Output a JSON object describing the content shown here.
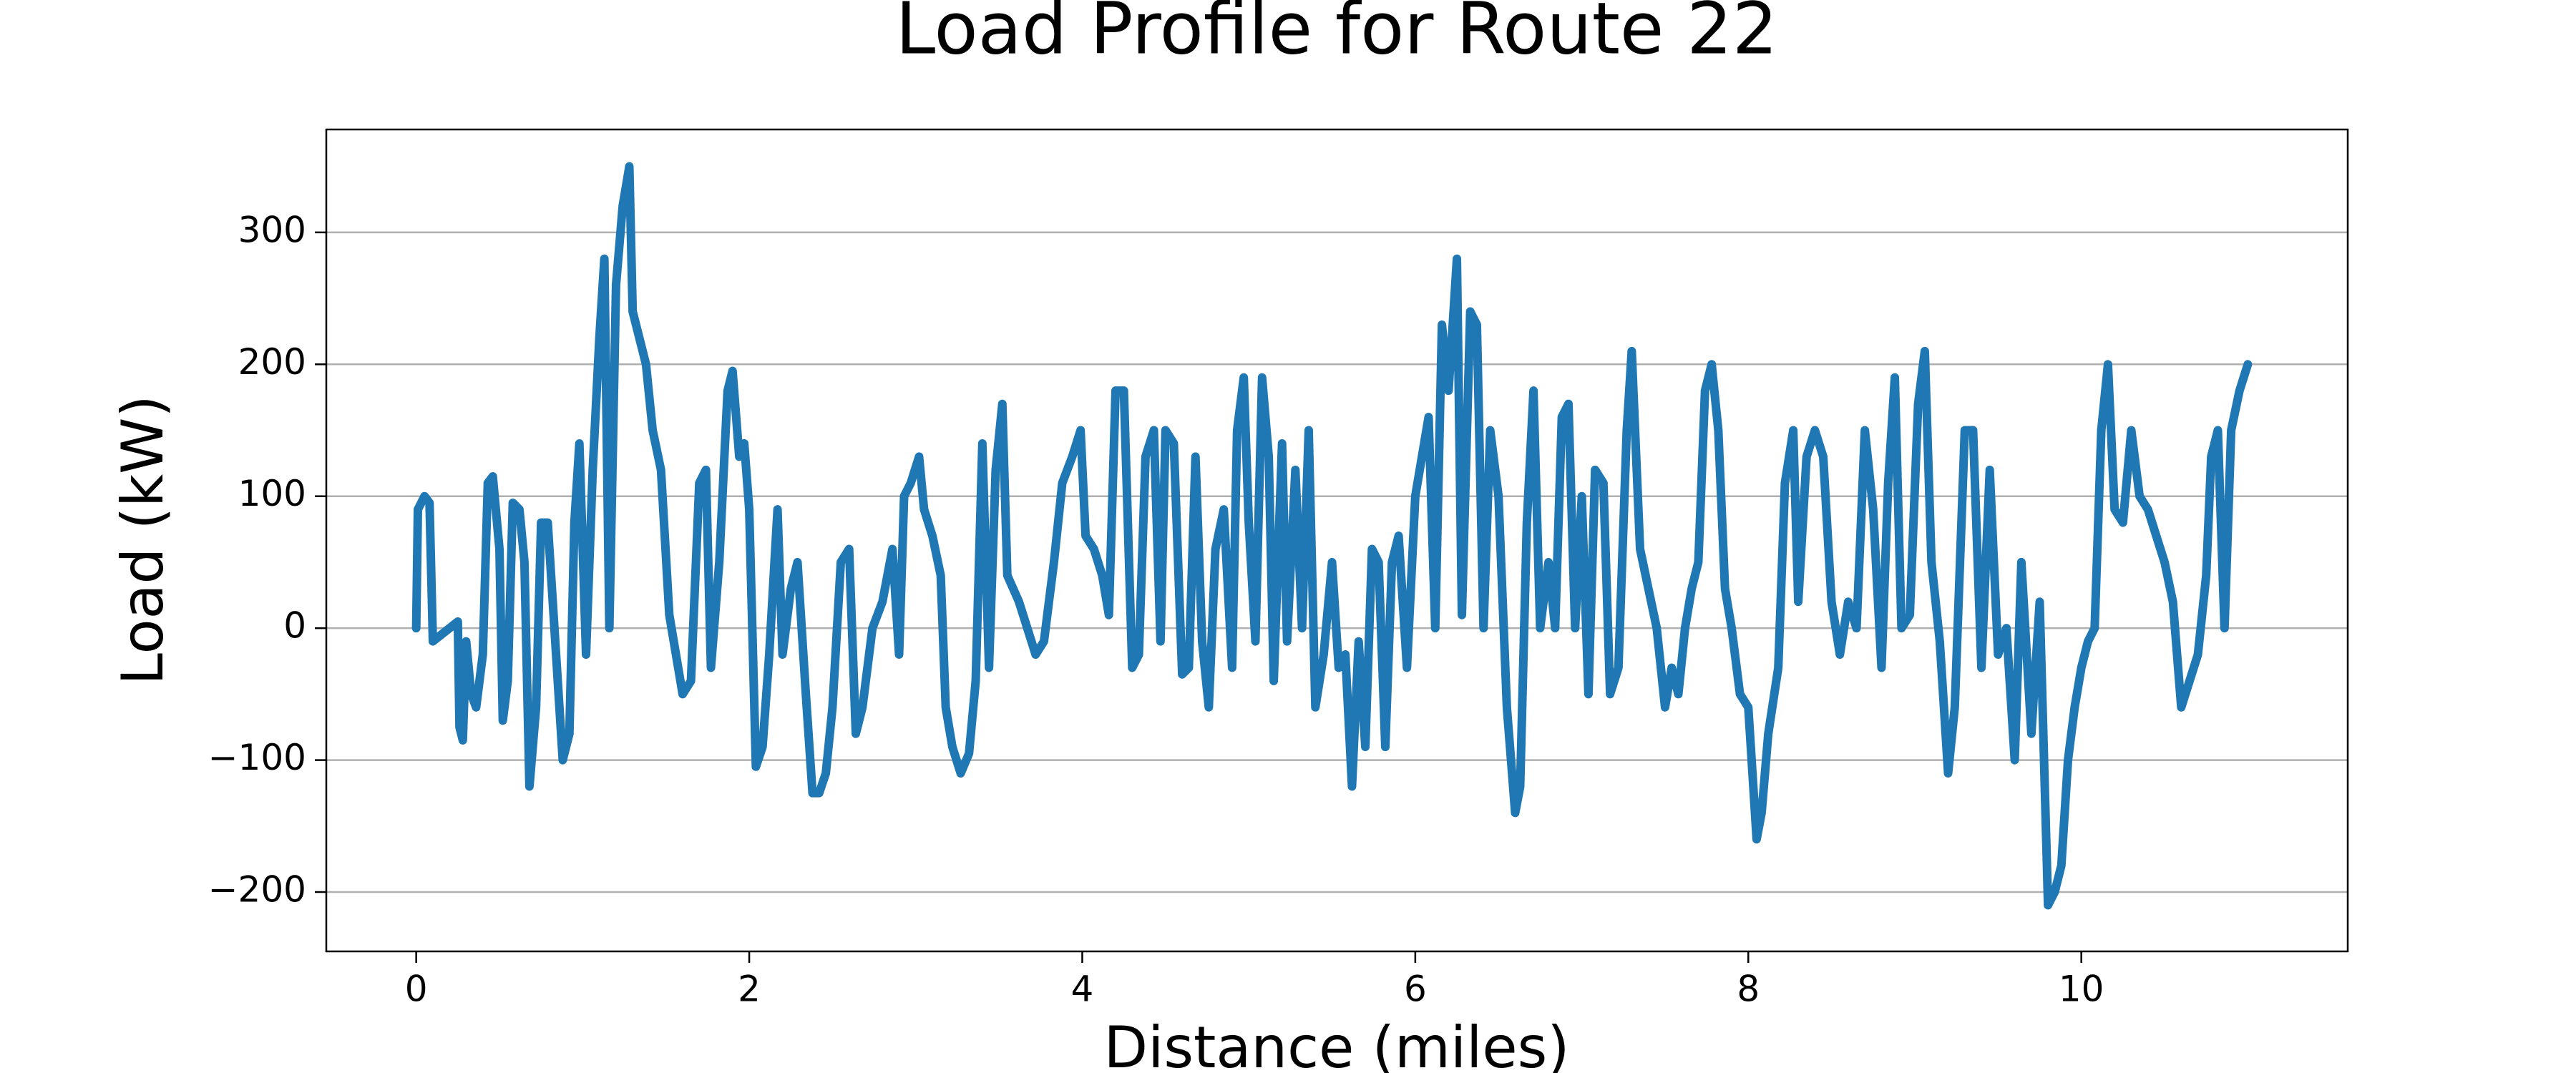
{
  "chart_data": {
    "type": "line",
    "title": "Load Profile for Route 22",
    "x_label": "Distance (miles)",
    "y_label": "Load (kW)",
    "color": "#1f77b4",
    "grid": true,
    "xlim": [
      -0.54,
      11.6
    ],
    "ylim": [
      -245,
      378
    ],
    "xticks": [
      0,
      2,
      4,
      6,
      8,
      10
    ],
    "yticks": [
      {
        "value": -200,
        "label": "−200"
      },
      {
        "value": -100,
        "label": "−100"
      },
      0,
      100,
      200,
      300
    ],
    "x": [
      0,
      0.01,
      0.05,
      0.08,
      0.1,
      0.15,
      0.25,
      0.26,
      0.28,
      0.3,
      0.33,
      0.36,
      0.4,
      0.43,
      0.46,
      0.5,
      0.52,
      0.55,
      0.58,
      0.62,
      0.65,
      0.68,
      0.72,
      0.75,
      0.79,
      0.83,
      0.88,
      0.92,
      0.95,
      0.98,
      1.02,
      1.06,
      1.1,
      1.13,
      1.16,
      1.2,
      1.24,
      1.28,
      1.3,
      1.34,
      1.38,
      1.42,
      1.47,
      1.52,
      1.56,
      1.6,
      1.65,
      1.7,
      1.74,
      1.77,
      1.82,
      1.87,
      1.9,
      1.94,
      1.97,
      2.0,
      2.04,
      2.08,
      2.12,
      2.17,
      2.2,
      2.25,
      2.29,
      2.34,
      2.38,
      2.42,
      2.46,
      2.5,
      2.55,
      2.6,
      2.64,
      2.68,
      2.74,
      2.8,
      2.86,
      2.9,
      2.93,
      2.97,
      3.02,
      3.05,
      3.1,
      3.15,
      3.18,
      3.22,
      3.27,
      3.32,
      3.36,
      3.4,
      3.44,
      3.48,
      3.52,
      3.55,
      3.62,
      3.67,
      3.72,
      3.77,
      3.83,
      3.88,
      3.94,
      3.99,
      4.02,
      4.07,
      4.12,
      4.16,
      4.2,
      4.25,
      4.3,
      4.34,
      4.38,
      4.43,
      4.47,
      4.5,
      4.55,
      4.6,
      4.64,
      4.68,
      4.72,
      4.76,
      4.8,
      4.85,
      4.9,
      4.93,
      4.97,
      5.0,
      5.04,
      5.08,
      5.12,
      5.15,
      5.2,
      5.23,
      5.28,
      5.32,
      5.36,
      5.4,
      5.45,
      5.5,
      5.54,
      5.58,
      5.62,
      5.66,
      5.7,
      5.74,
      5.78,
      5.82,
      5.86,
      5.9,
      5.95,
      6.0,
      6.04,
      6.08,
      6.12,
      6.16,
      6.2,
      6.25,
      6.28,
      6.33,
      6.37,
      6.41,
      6.45,
      6.5,
      6.55,
      6.6,
      6.63,
      6.67,
      6.71,
      6.75,
      6.8,
      6.84,
      6.88,
      6.92,
      6.96,
      7.0,
      7.04,
      7.08,
      7.13,
      7.17,
      7.22,
      7.27,
      7.3,
      7.35,
      7.4,
      7.45,
      7.5,
      7.54,
      7.58,
      7.62,
      7.66,
      7.7,
      7.74,
      7.78,
      7.82,
      7.86,
      7.9,
      7.95,
      8.0,
      8.05,
      8.08,
      8.12,
      8.18,
      8.22,
      8.27,
      8.3,
      8.35,
      8.4,
      8.45,
      8.5,
      8.55,
      8.6,
      8.65,
      8.7,
      8.75,
      8.8,
      8.84,
      8.88,
      8.92,
      8.97,
      9.02,
      9.06,
      9.1,
      9.15,
      9.2,
      9.24,
      9.3,
      9.35,
      9.4,
      9.45,
      9.5,
      9.55,
      9.6,
      9.64,
      9.7,
      9.75,
      9.8,
      9.84,
      9.88,
      9.92,
      9.96,
      10.0,
      10.04,
      10.08,
      10.12,
      10.16,
      10.2,
      10.25,
      10.3,
      10.35,
      10.4,
      10.45,
      10.5,
      10.55,
      10.6,
      10.65,
      10.7,
      10.75,
      10.78,
      10.82,
      10.86,
      10.9,
      10.95,
      11.0
    ],
    "values": [
      0,
      90,
      100,
      95,
      -10,
      -5,
      5,
      -75,
      -85,
      -10,
      -50,
      -60,
      -20,
      110,
      115,
      60,
      -70,
      -40,
      95,
      90,
      50,
      -120,
      -60,
      80,
      80,
      0,
      -100,
      -80,
      80,
      140,
      -20,
      120,
      220,
      280,
      0,
      260,
      320,
      350,
      240,
      220,
      200,
      150,
      120,
      10,
      -20,
      -50,
      -40,
      110,
      120,
      -30,
      50,
      180,
      195,
      130,
      140,
      90,
      -105,
      -90,
      -20,
      90,
      -20,
      30,
      50,
      -50,
      -125,
      -125,
      -110,
      -60,
      50,
      60,
      -80,
      -60,
      0,
      20,
      60,
      -20,
      100,
      110,
      130,
      90,
      70,
      40,
      -60,
      -90,
      -110,
      -95,
      -40,
      140,
      -30,
      120,
      170,
      40,
      20,
      0,
      -20,
      -10,
      50,
      110,
      130,
      150,
      70,
      60,
      40,
      10,
      180,
      180,
      -30,
      -20,
      130,
      150,
      -10,
      150,
      140,
      -35,
      -30,
      130,
      -10,
      -60,
      60,
      90,
      -30,
      150,
      190,
      80,
      -10,
      190,
      130,
      -40,
      140,
      -10,
      120,
      0,
      150,
      -60,
      -20,
      50,
      -30,
      -20,
      -120,
      -10,
      -90,
      60,
      50,
      -90,
      50,
      70,
      -30,
      100,
      130,
      160,
      0,
      230,
      180,
      280,
      10,
      240,
      230,
      0,
      150,
      100,
      -60,
      -140,
      -120,
      80,
      180,
      0,
      50,
      0,
      160,
      170,
      0,
      100,
      -50,
      120,
      110,
      -50,
      -30,
      150,
      210,
      60,
      30,
      0,
      -60,
      -30,
      -50,
      0,
      30,
      50,
      180,
      200,
      150,
      30,
      0,
      -50,
      -60,
      -160,
      -140,
      -80,
      -30,
      110,
      150,
      20,
      130,
      150,
      130,
      20,
      -20,
      20,
      0,
      150,
      90,
      -30,
      110,
      190,
      0,
      10,
      170,
      210,
      50,
      -10,
      -110,
      -60,
      150,
      150,
      -30,
      120,
      -20,
      0,
      -100,
      50,
      -80,
      20,
      -210,
      -200,
      -180,
      -100,
      -60,
      -30,
      -10,
      0,
      150,
      200,
      90,
      80,
      150,
      100,
      90,
      70,
      50,
      20,
      -60,
      -40,
      -20,
      40,
      130,
      150,
      0,
      150,
      180,
      200
    ]
  }
}
